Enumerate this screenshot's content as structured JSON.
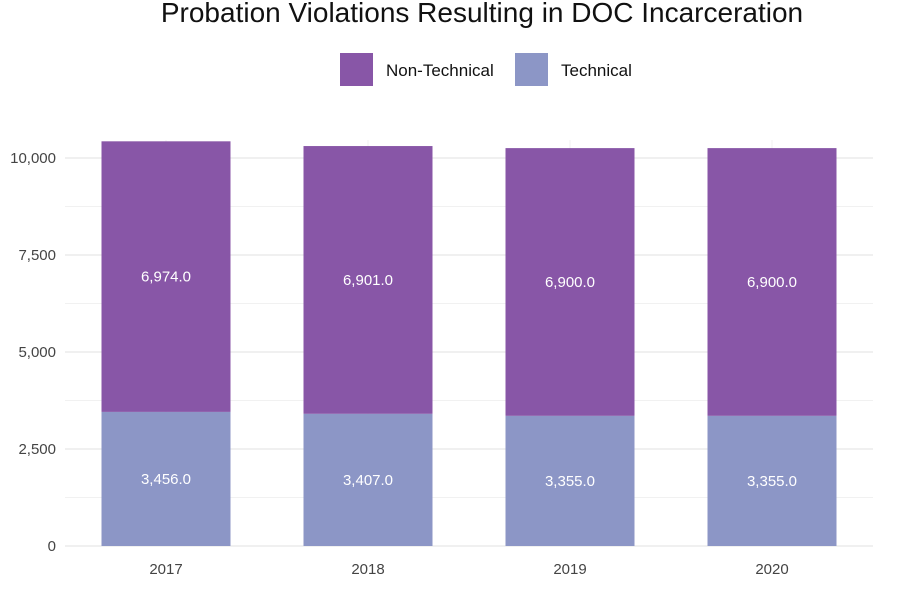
{
  "chart_data": {
    "type": "bar",
    "stacked": true,
    "title": "Probation Violations Resulting in DOC Incarceration",
    "xlabel": "",
    "ylabel": "",
    "categories": [
      "2017",
      "2018",
      "2019",
      "2020"
    ],
    "series": [
      {
        "name": "Technical",
        "values": [
          3456,
          3407,
          3355,
          3355
        ],
        "labels": [
          "3,456.0",
          "3,407.0",
          "3,355.0",
          "3,355.0"
        ],
        "color": "#8c96c6"
      },
      {
        "name": "Non-Technical",
        "values": [
          6974,
          6901,
          6900,
          6900
        ],
        "labels": [
          "6,974.0",
          "6,901.0",
          "6,900.0",
          "6,900.0"
        ],
        "color": "#8856a7"
      }
    ],
    "legend_order": [
      "Non-Technical",
      "Technical"
    ],
    "legend_position": "top",
    "ylim": [
      0,
      10430
    ],
    "yticks": [
      0,
      2500,
      5000,
      7500,
      10000
    ],
    "ytick_labels": [
      "0",
      "2,500",
      "5,000",
      "7,500",
      "10,000"
    ],
    "grid": true
  }
}
